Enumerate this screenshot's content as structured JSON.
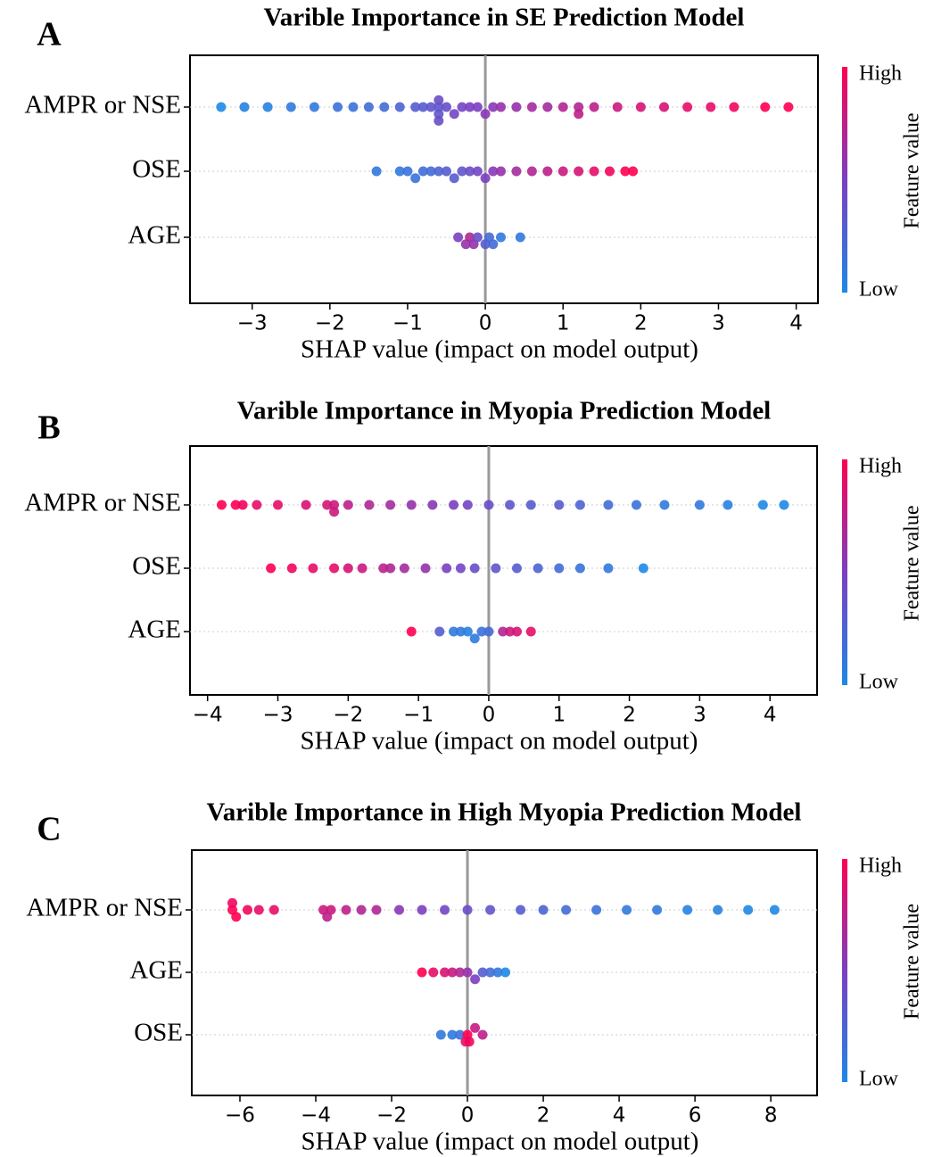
{
  "chart_data": [
    {
      "type": "beeswarm",
      "label": "A",
      "title": "Varible Importance in SE Prediction Model",
      "xlabel": "SHAP value (impact on model output)",
      "xlim": [
        -3.8,
        4.28
      ],
      "xticks": [
        {
          "value": -3,
          "label": "−3"
        },
        {
          "value": -2,
          "label": "−2"
        },
        {
          "value": -1,
          "label": "−1"
        },
        0,
        1,
        2,
        3,
        4
      ],
      "colorbar_label": "Feature value",
      "colorbar_high": "High",
      "colorbar_low": "Low",
      "colormap": [
        "#1e88e5",
        "#7b3fc0",
        "#ff0052"
      ],
      "series": [
        {
          "name": "AMPR or NSE",
          "values": [
            -3.4,
            -3.1,
            -2.8,
            -2.5,
            -2.2,
            -1.9,
            -1.7,
            -1.5,
            -1.3,
            -1.1,
            -0.9,
            -0.8,
            -0.7,
            -0.6,
            -0.6,
            -0.6,
            -0.6,
            -0.5,
            -0.4,
            -0.3,
            -0.2,
            -0.1,
            0,
            0.1,
            0.2,
            0.4,
            0.6,
            0.8,
            1,
            1.2,
            1.2,
            1.4,
            1.7,
            2,
            2.3,
            2.6,
            2.9,
            3.2,
            3.6,
            3.9
          ],
          "feature_values": [
            0,
            0.05,
            0.05,
            0.1,
            0.1,
            0.15,
            0.15,
            0.2,
            0.2,
            0.25,
            0.3,
            0.3,
            0.35,
            0.35,
            0.35,
            0.4,
            0.4,
            0.4,
            0.45,
            0.45,
            0.5,
            0.5,
            0.55,
            0.55,
            0.6,
            0.6,
            0.65,
            0.65,
            0.7,
            0.7,
            0.75,
            0.75,
            0.8,
            0.85,
            0.85,
            0.9,
            0.9,
            0.95,
            1,
            1
          ]
        },
        {
          "name": "OSE",
          "values": [
            -1.4,
            -1.1,
            -1,
            -0.9,
            -0.8,
            -0.7,
            -0.6,
            -0.5,
            -0.4,
            -0.3,
            -0.2,
            -0.1,
            0,
            0.1,
            0.2,
            0.4,
            0.6,
            0.8,
            1,
            1.2,
            1.4,
            1.6,
            1.8,
            1.9
          ],
          "feature_values": [
            0.1,
            0.1,
            0.15,
            0.15,
            0.2,
            0.2,
            0.25,
            0.3,
            0.3,
            0.35,
            0.4,
            0.45,
            0.5,
            0.55,
            0.6,
            0.65,
            0.7,
            0.75,
            0.8,
            0.85,
            0.9,
            0.95,
            1,
            1
          ]
        },
        {
          "name": "AGE",
          "values": [
            -0.35,
            -0.25,
            -0.2,
            -0.15,
            -0.1,
            0,
            0.05,
            0.1,
            0.2,
            0.45
          ],
          "feature_values": [
            0.5,
            0.6,
            0.7,
            0.6,
            0.4,
            0.3,
            0.2,
            0.2,
            0.1,
            0.1
          ]
        }
      ]
    },
    {
      "type": "beeswarm",
      "label": "B",
      "title": "Varible Importance in Myopia Prediction Model",
      "xlabel": "SHAP value (impact on model output)",
      "xlim": [
        -4.25,
        4.67
      ],
      "xticks": [
        {
          "value": -4,
          "label": "−4"
        },
        {
          "value": -3,
          "label": "−3"
        },
        {
          "value": -2,
          "label": "−2"
        },
        {
          "value": -1,
          "label": "−1"
        },
        0,
        1,
        2,
        3,
        4
      ],
      "colorbar_label": "Feature value",
      "colorbar_high": "High",
      "colorbar_low": "Low",
      "colormap": [
        "#1e88e5",
        "#7b3fc0",
        "#ff0052"
      ],
      "series": [
        {
          "name": "AMPR or NSE",
          "values": [
            -3.8,
            -3.6,
            -3.5,
            -3.3,
            -3,
            -2.6,
            -2.3,
            -2.2,
            -2.2,
            -2,
            -1.7,
            -1.4,
            -1.1,
            -0.8,
            -0.5,
            -0.3,
            0,
            0.3,
            0.6,
            1,
            1.3,
            1.7,
            2.1,
            2.5,
            3,
            3.4,
            3.9,
            4.2
          ],
          "feature_values": [
            1,
            1,
            0.95,
            0.9,
            0.9,
            0.85,
            0.85,
            0.8,
            0.8,
            0.75,
            0.7,
            0.65,
            0.6,
            0.55,
            0.5,
            0.45,
            0.4,
            0.35,
            0.3,
            0.3,
            0.25,
            0.2,
            0.15,
            0.1,
            0.1,
            0.05,
            0,
            0
          ]
        },
        {
          "name": "OSE",
          "values": [
            -3.1,
            -2.8,
            -2.5,
            -2.2,
            -2,
            -1.8,
            -1.5,
            -1.4,
            -1.2,
            -0.9,
            -0.6,
            -0.4,
            -0.2,
            0.1,
            0.4,
            0.7,
            1,
            1.3,
            1.7,
            2.2
          ],
          "feature_values": [
            1,
            0.95,
            0.9,
            0.9,
            0.85,
            0.8,
            0.75,
            0.7,
            0.65,
            0.6,
            0.5,
            0.45,
            0.4,
            0.35,
            0.3,
            0.25,
            0.2,
            0.15,
            0.1,
            0
          ]
        },
        {
          "name": "AGE",
          "values": [
            -1.1,
            -0.7,
            -0.5,
            -0.4,
            -0.3,
            -0.2,
            -0.1,
            0,
            0.2,
            0.3,
            0.4,
            0.6
          ],
          "feature_values": [
            1,
            0.3,
            0.1,
            0.1,
            0.05,
            0.1,
            0.15,
            0.2,
            0.7,
            0.8,
            0.85,
            0.9
          ]
        }
      ]
    },
    {
      "type": "beeswarm",
      "label": "C",
      "title": "Varible Importance in High Myopia Prediction Model",
      "xlabel": "SHAP value (impact on model output)",
      "xlim": [
        -7.27,
        9.22
      ],
      "xticks": [
        {
          "value": -6,
          "label": "−6"
        },
        {
          "value": -4,
          "label": "−4"
        },
        {
          "value": -2,
          "label": "−2"
        },
        0,
        2,
        4,
        6,
        8
      ],
      "colorbar_label": "Feature value",
      "colorbar_high": "High",
      "colorbar_low": "Low",
      "colormap": [
        "#1e88e5",
        "#7b3fc0",
        "#ff0052"
      ],
      "series": [
        {
          "name": "AMPR or NSE",
          "values": [
            -6.2,
            -6.1,
            -6.2,
            -5.8,
            -5.5,
            -5.1,
            -3.8,
            -3.6,
            -3.7,
            -3.2,
            -2.8,
            -2.4,
            -1.8,
            -1.2,
            -0.6,
            0,
            0.6,
            1.4,
            2,
            2.6,
            3.4,
            4.2,
            5,
            5.8,
            6.6,
            7.4,
            8.1
          ],
          "feature_values": [
            1,
            1,
            0.95,
            0.95,
            0.9,
            0.9,
            0.8,
            0.8,
            0.75,
            0.75,
            0.7,
            0.7,
            0.55,
            0.5,
            0.45,
            0.4,
            0.35,
            0.3,
            0.25,
            0.2,
            0.15,
            0.1,
            0.1,
            0.05,
            0.05,
            0,
            0
          ]
        },
        {
          "name": "AGE",
          "values": [
            -1.2,
            -0.9,
            -0.6,
            -0.4,
            -0.2,
            0,
            0.2,
            0.4,
            0.6,
            0.8,
            1
          ],
          "feature_values": [
            1,
            0.9,
            0.85,
            0.8,
            0.7,
            0.6,
            0.5,
            0.3,
            0.2,
            0.1,
            0
          ]
        },
        {
          "name": "OSE",
          "values": [
            -0.7,
            -0.4,
            -0.2,
            -0.05,
            0,
            0.05,
            0.2,
            0.4
          ],
          "feature_values": [
            0.1,
            0.1,
            0.15,
            0.9,
            1,
            0.95,
            0.8,
            0.75
          ]
        }
      ]
    }
  ]
}
